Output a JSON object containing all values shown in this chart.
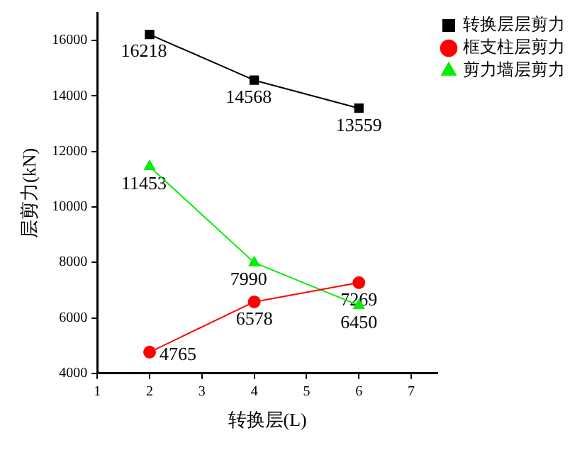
{
  "chart_data": {
    "type": "line",
    "xlabel": "转换层(L)",
    "ylabel": "层剪力(kN)",
    "x": [
      2,
      4,
      6
    ],
    "series": [
      {
        "name": "转换层层剪力",
        "color": "#000000",
        "marker": "square",
        "values": [
          16218,
          14568,
          13559
        ]
      },
      {
        "name": "框支柱层剪力",
        "color": "#ff0000",
        "marker": "circle",
        "values": [
          4765,
          6578,
          7269
        ]
      },
      {
        "name": "剪力墙层剪力",
        "color": "#00ee00",
        "marker": "triangle",
        "values": [
          11453,
          7990,
          6450
        ]
      }
    ],
    "xlim": [
      1,
      7.5
    ],
    "xticks": [
      1,
      2,
      3,
      4,
      5,
      6,
      7
    ],
    "ylim": [
      4000,
      17000
    ],
    "yticks": [
      4000,
      6000,
      8000,
      10000,
      12000,
      14000,
      16000
    ],
    "legend": "top right",
    "grid": false,
    "data_labels": true
  }
}
